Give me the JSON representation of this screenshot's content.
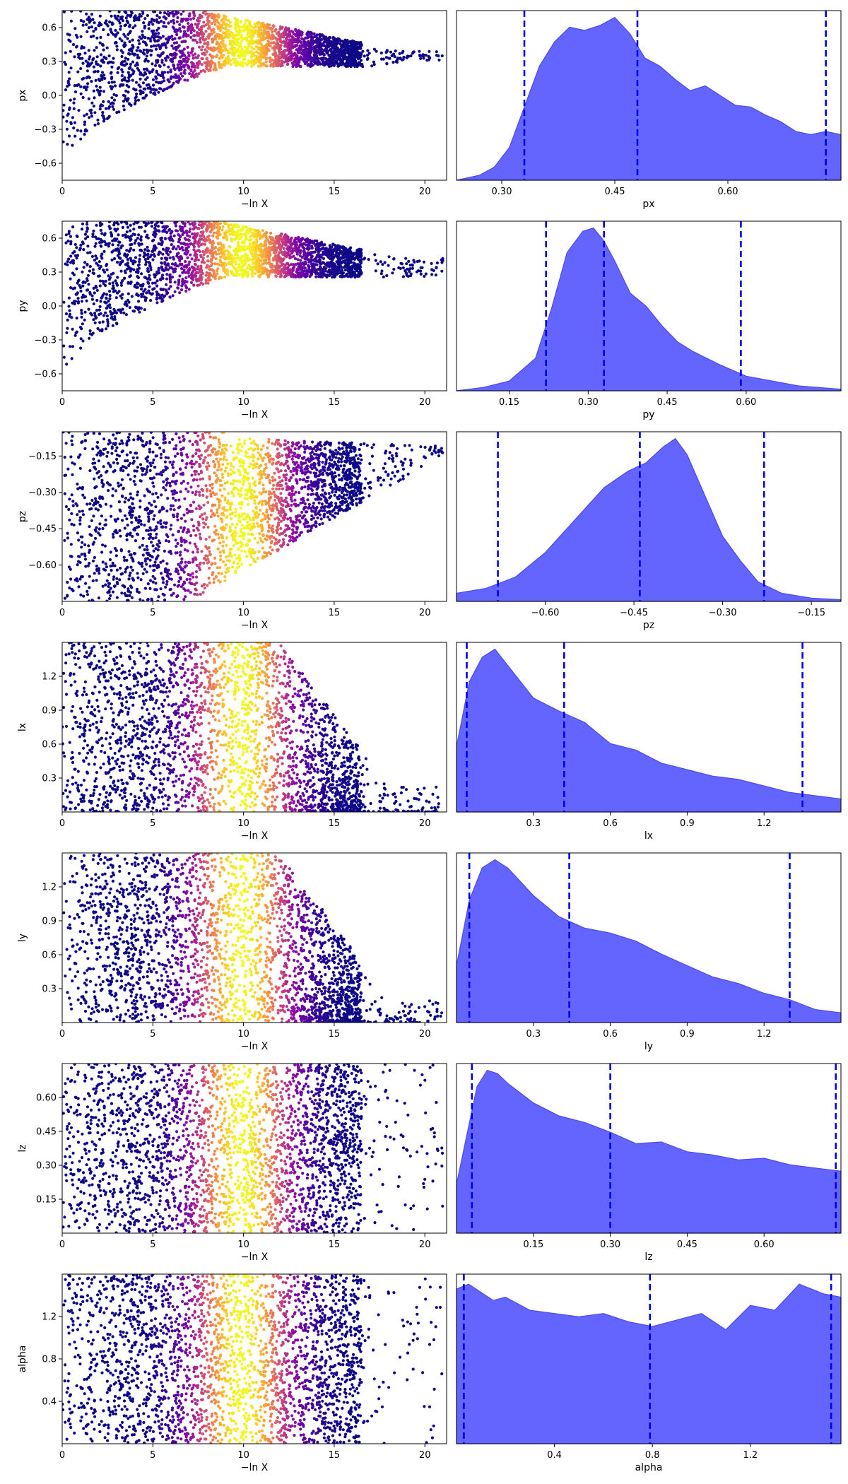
{
  "figure": {
    "scatter_xlabel": "−ln X",
    "trace_colormap": "plasma",
    "point_color_edge": "#170a8a",
    "kde_fill_color": "#6464ff",
    "kde_line_color": "#4a4af2",
    "quantile_line_color": "#0000ee"
  },
  "chart_data": [
    {
      "type": "scatter",
      "ylabel": "px",
      "xlabel": "−ln X",
      "xlim": [
        0,
        21.2
      ],
      "ylim": [
        -0.75,
        0.75
      ],
      "xticks": [
        "0",
        "5",
        "10",
        "15",
        "20"
      ],
      "yticks": [
        "−0.6",
        "−0.3",
        "0.0",
        "0.3",
        "0.6"
      ],
      "mode": "converge",
      "converge_center": 0.35,
      "converge_width_end": 0.04
    },
    {
      "type": "area",
      "xlabel": "px",
      "xlim": [
        0.24,
        0.75
      ],
      "xticks": [
        "0.30",
        "0.45",
        "0.60"
      ],
      "x": [
        0.24,
        0.27,
        0.29,
        0.31,
        0.33,
        0.35,
        0.37,
        0.39,
        0.41,
        0.43,
        0.45,
        0.47,
        0.49,
        0.51,
        0.53,
        0.55,
        0.57,
        0.59,
        0.61,
        0.63,
        0.65,
        0.67,
        0.69,
        0.71,
        0.73,
        0.75
      ],
      "y": [
        0.0,
        0.03,
        0.08,
        0.2,
        0.45,
        0.7,
        0.85,
        0.94,
        0.92,
        0.95,
        1.0,
        0.9,
        0.75,
        0.7,
        0.62,
        0.55,
        0.58,
        0.52,
        0.46,
        0.45,
        0.4,
        0.36,
        0.3,
        0.28,
        0.3,
        0.28
      ],
      "quantiles": [
        0.33,
        0.48,
        0.73
      ]
    },
    {
      "type": "scatter",
      "ylabel": "py",
      "xlabel": "−ln X",
      "xlim": [
        0,
        21.2
      ],
      "ylim": [
        -0.75,
        0.75
      ],
      "xticks": [
        "0",
        "5",
        "10",
        "15",
        "20"
      ],
      "yticks": [
        "−0.6",
        "−0.3",
        "0.0",
        "0.3",
        "0.6"
      ],
      "mode": "converge",
      "converge_center": 0.32,
      "converge_width_end": 0.1
    },
    {
      "type": "area",
      "xlabel": "py",
      "xlim": [
        0.05,
        0.78
      ],
      "xticks": [
        "0.15",
        "0.30",
        "0.45",
        "0.60"
      ],
      "x": [
        0.05,
        0.1,
        0.15,
        0.2,
        0.23,
        0.26,
        0.29,
        0.31,
        0.33,
        0.35,
        0.38,
        0.41,
        0.44,
        0.47,
        0.5,
        0.55,
        0.6,
        0.65,
        0.7,
        0.78
      ],
      "y": [
        0.0,
        0.02,
        0.06,
        0.2,
        0.5,
        0.85,
        0.98,
        1.0,
        0.92,
        0.8,
        0.6,
        0.52,
        0.4,
        0.3,
        0.24,
        0.16,
        0.09,
        0.06,
        0.03,
        0.01
      ],
      "quantiles": [
        0.22,
        0.33,
        0.59
      ]
    },
    {
      "type": "scatter",
      "ylabel": "pz",
      "xlabel": "−ln X",
      "xlim": [
        0,
        21.2
      ],
      "ylim": [
        -0.75,
        -0.05
      ],
      "xticks": [
        "0",
        "5",
        "10",
        "15",
        "20"
      ],
      "yticks": [
        "−0.60",
        "−0.45",
        "−0.30",
        "−0.15"
      ],
      "mode": "upper",
      "converge_center": -0.3,
      "converge_width_end": 0.12
    },
    {
      "type": "area",
      "xlabel": "pz",
      "xlim": [
        -0.75,
        -0.1
      ],
      "xticks": [
        "−0.60",
        "−0.45",
        "−0.30",
        "−0.15"
      ],
      "x": [
        -0.75,
        -0.7,
        -0.65,
        -0.6,
        -0.55,
        -0.5,
        -0.46,
        -0.43,
        -0.4,
        -0.38,
        -0.36,
        -0.33,
        -0.3,
        -0.27,
        -0.24,
        -0.2,
        -0.15,
        -0.1
      ],
      "y": [
        0.05,
        0.08,
        0.15,
        0.3,
        0.5,
        0.7,
        0.8,
        0.85,
        0.95,
        1.0,
        0.9,
        0.65,
        0.4,
        0.25,
        0.12,
        0.05,
        0.02,
        0.01
      ],
      "quantiles": [
        -0.68,
        -0.44,
        -0.23
      ]
    },
    {
      "type": "scatter",
      "ylabel": "lx",
      "xlabel": "−ln X",
      "xlim": [
        0,
        21.2
      ],
      "ylim": [
        0,
        1.5
      ],
      "xticks": [
        "0",
        "5",
        "10",
        "15",
        "20"
      ],
      "yticks": [
        "0.3",
        "0.6",
        "0.9",
        "1.2"
      ],
      "mode": "lower",
      "converge_center": 0.05,
      "converge_width_end": 0.05
    },
    {
      "type": "area",
      "xlabel": "lx",
      "xlim": [
        0.0,
        1.5
      ],
      "xticks": [
        "0.3",
        "0.6",
        "0.9",
        "1.2"
      ],
      "x": [
        0.0,
        0.05,
        0.1,
        0.15,
        0.2,
        0.3,
        0.4,
        0.5,
        0.6,
        0.7,
        0.8,
        0.9,
        1.0,
        1.1,
        1.2,
        1.3,
        1.4,
        1.5
      ],
      "y": [
        0.4,
        0.8,
        0.95,
        1.0,
        0.9,
        0.7,
        0.62,
        0.55,
        0.42,
        0.38,
        0.3,
        0.26,
        0.22,
        0.2,
        0.16,
        0.12,
        0.1,
        0.08
      ],
      "quantiles": [
        0.04,
        0.42,
        1.35
      ]
    },
    {
      "type": "scatter",
      "ylabel": "ly",
      "xlabel": "−ln X",
      "xlim": [
        0,
        21.2
      ],
      "ylim": [
        0,
        1.5
      ],
      "xticks": [
        "0",
        "5",
        "10",
        "15",
        "20"
      ],
      "yticks": [
        "0.3",
        "0.6",
        "0.9",
        "1.2"
      ],
      "mode": "lower",
      "converge_center": 0.05,
      "converge_width_end": 0.05
    },
    {
      "type": "area",
      "xlabel": "ly",
      "xlim": [
        0.0,
        1.5
      ],
      "xticks": [
        "0.3",
        "0.6",
        "0.9",
        "1.2"
      ],
      "x": [
        0.0,
        0.05,
        0.1,
        0.15,
        0.2,
        0.3,
        0.4,
        0.5,
        0.6,
        0.7,
        0.8,
        0.9,
        1.0,
        1.1,
        1.2,
        1.3,
        1.4,
        1.5
      ],
      "y": [
        0.35,
        0.75,
        0.95,
        1.0,
        0.95,
        0.78,
        0.65,
        0.58,
        0.55,
        0.5,
        0.42,
        0.35,
        0.28,
        0.24,
        0.18,
        0.14,
        0.08,
        0.06
      ],
      "quantiles": [
        0.05,
        0.44,
        1.3
      ]
    },
    {
      "type": "scatter",
      "ylabel": "lz",
      "xlabel": "−ln X",
      "xlim": [
        0,
        21.2
      ],
      "ylim": [
        0,
        0.75
      ],
      "xticks": [
        "0",
        "5",
        "10",
        "15",
        "20"
      ],
      "yticks": [
        "0.15",
        "0.30",
        "0.45",
        "0.60"
      ],
      "mode": "uniform",
      "converge_center": 0.0,
      "converge_width_end": 0.0
    },
    {
      "type": "area",
      "xlabel": "lz",
      "xlim": [
        0.0,
        0.75
      ],
      "xticks": [
        "0.15",
        "0.30",
        "0.45",
        "0.60"
      ],
      "x": [
        0.0,
        0.02,
        0.04,
        0.06,
        0.08,
        0.1,
        0.15,
        0.2,
        0.25,
        0.3,
        0.35,
        0.4,
        0.45,
        0.5,
        0.55,
        0.6,
        0.65,
        0.7,
        0.75
      ],
      "y": [
        0.3,
        0.6,
        0.9,
        1.0,
        0.98,
        0.92,
        0.8,
        0.72,
        0.68,
        0.62,
        0.55,
        0.56,
        0.5,
        0.48,
        0.45,
        0.46,
        0.42,
        0.4,
        0.38
      ],
      "quantiles": [
        0.03,
        0.3,
        0.74
      ]
    },
    {
      "type": "scatter",
      "ylabel": "alpha",
      "xlabel": "−ln X",
      "xlim": [
        0,
        21.2
      ],
      "ylim": [
        0,
        1.6
      ],
      "xticks": [
        "0",
        "5",
        "10",
        "15",
        "20"
      ],
      "yticks": [
        "0.4",
        "0.8",
        "1.2"
      ],
      "mode": "uniform",
      "converge_center": 0.0,
      "converge_width_end": 0.0
    },
    {
      "type": "area",
      "xlabel": "alpha",
      "xlim": [
        0.0,
        1.57
      ],
      "xticks": [
        "0.4",
        "0.8",
        "1.2"
      ],
      "x": [
        0.0,
        0.05,
        0.1,
        0.15,
        0.2,
        0.3,
        0.4,
        0.5,
        0.6,
        0.7,
        0.8,
        0.9,
        1.0,
        1.1,
        1.2,
        1.3,
        1.4,
        1.5,
        1.57
      ],
      "y": [
        0.95,
        0.98,
        0.93,
        0.88,
        0.9,
        0.82,
        0.8,
        0.78,
        0.8,
        0.75,
        0.72,
        0.76,
        0.8,
        0.7,
        0.85,
        0.82,
        0.98,
        0.92,
        0.9
      ],
      "quantiles": [
        0.03,
        0.79,
        1.53
      ]
    }
  ]
}
